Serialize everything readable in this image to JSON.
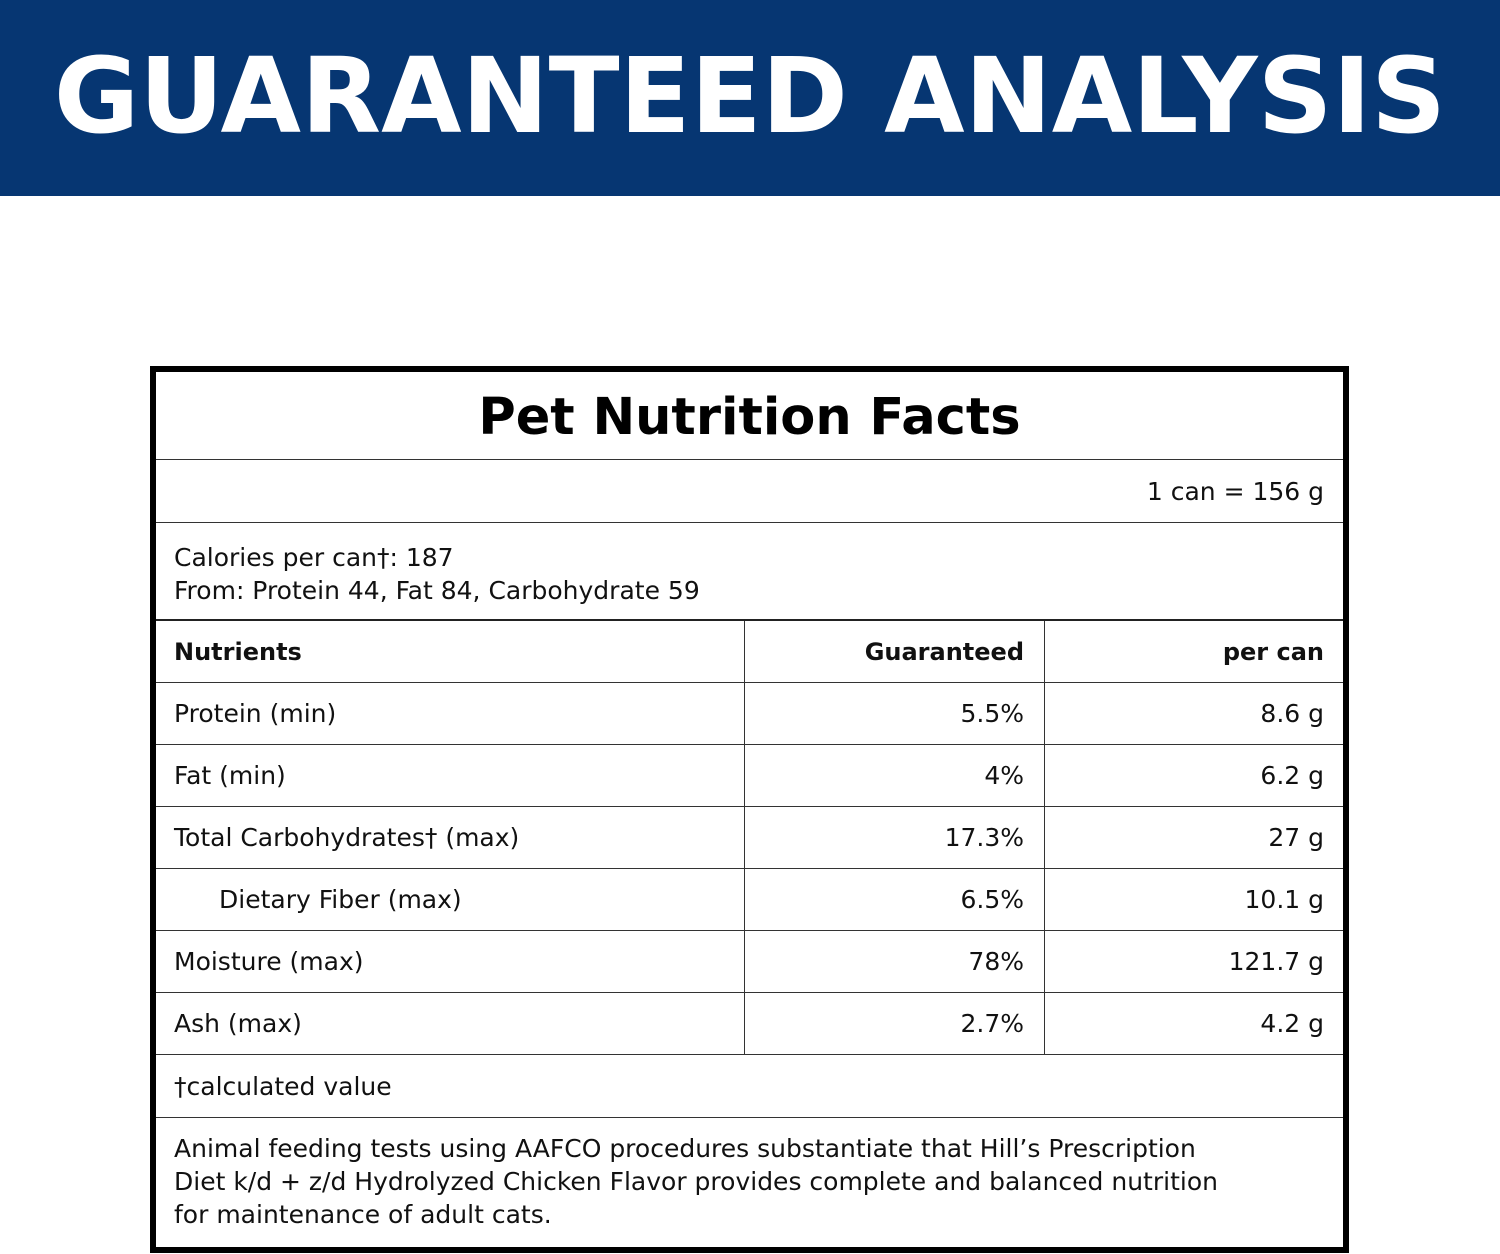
{
  "banner": {
    "title": "GUARANTEED ANALYSIS"
  },
  "panel": {
    "title": "Pet Nutrition Facts",
    "serving": "1 can = 156 g",
    "calories_line1": "Calories per can†: 187",
    "calories_line2": "From: Protein 44, Fat 84, Carbohydrate 59",
    "headers": {
      "nutrients": "Nutrients",
      "guaranteed": "Guaranteed",
      "per_can": "per can"
    },
    "rows": [
      {
        "name": "Protein (min)",
        "guaranteed": "5.5%",
        "per_can": "8.6 g"
      },
      {
        "name": "Fat (min)",
        "guaranteed": "4%",
        "per_can": "6.2 g"
      },
      {
        "name": "Total Carbohydrates† (max)",
        "guaranteed": "17.3%",
        "per_can": "27 g"
      },
      {
        "name": "Dietary Fiber (max)",
        "guaranteed": "6.5%",
        "per_can": "10.1 g"
      },
      {
        "name": "Moisture (max)",
        "guaranteed": "78%",
        "per_can": "121.7 g"
      },
      {
        "name": "Ash (max)",
        "guaranteed": "2.7%",
        "per_can": "4.2 g"
      }
    ],
    "footnote": "†calculated value",
    "statement_lines": [
      "Animal feeding tests using AAFCO procedures substantiate that Hill’s Prescription",
      "Diet k/d + z/d Hydrolyzed Chicken Flavor provides complete and balanced nutrition",
      "for maintenance of adult cats."
    ]
  },
  "colors": {
    "banner_bg": "#063672",
    "banner_text": "#ffffff",
    "border": "#000000"
  }
}
